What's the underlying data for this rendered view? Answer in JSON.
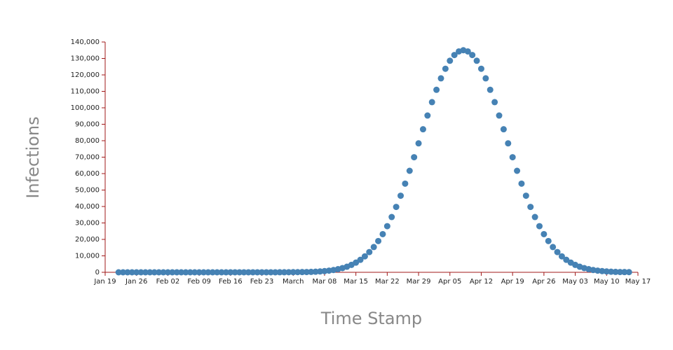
{
  "chart_data": {
    "type": "scatter",
    "x_label": "Time Stamp",
    "y_label": "Infections",
    "x": [
      "Jan 22",
      "Jan 23",
      "Jan 24",
      "Jan 25",
      "Jan 26",
      "Jan 27",
      "Jan 28",
      "Jan 29",
      "Jan 30",
      "Jan 31",
      "Feb 01",
      "Feb 02",
      "Feb 03",
      "Feb 04",
      "Feb 05",
      "Feb 06",
      "Feb 07",
      "Feb 08",
      "Feb 09",
      "Feb 10",
      "Feb 11",
      "Feb 12",
      "Feb 13",
      "Feb 14",
      "Feb 15",
      "Feb 16",
      "Feb 17",
      "Feb 18",
      "Feb 19",
      "Feb 20",
      "Feb 21",
      "Feb 22",
      "Feb 23",
      "Feb 24",
      "Feb 25",
      "Feb 26",
      "Feb 27",
      "Feb 28",
      "Feb 29",
      "Mar 01",
      "Mar 02",
      "Mar 03",
      "Mar 04",
      "Mar 05",
      "Mar 06",
      "Mar 07",
      "Mar 08",
      "Mar 09",
      "Mar 10",
      "Mar 11",
      "Mar 12",
      "Mar 13",
      "Mar 14",
      "Mar 15",
      "Mar 16",
      "Mar 17",
      "Mar 18",
      "Mar 19",
      "Mar 20",
      "Mar 21",
      "Mar 22",
      "Mar 23",
      "Mar 24",
      "Mar 25",
      "Mar 26",
      "Mar 27",
      "Mar 28",
      "Mar 29",
      "Mar 30",
      "Mar 31",
      "Apr 01",
      "Apr 02",
      "Apr 03",
      "Apr 04",
      "Apr 05",
      "Apr 06",
      "Apr 07",
      "Apr 08",
      "Apr 09",
      "Apr 10",
      "Apr 11",
      "Apr 12",
      "Apr 13",
      "Apr 14",
      "Apr 15",
      "Apr 16",
      "Apr 17",
      "Apr 18",
      "Apr 19",
      "Apr 20",
      "Apr 21",
      "Apr 22",
      "Apr 23",
      "Apr 24",
      "Apr 25",
      "Apr 26",
      "Apr 27",
      "Apr 28",
      "Apr 29",
      "Apr 30",
      "May 01",
      "May 02",
      "May 03",
      "May 04",
      "May 05",
      "May 06",
      "May 07",
      "May 08",
      "May 09",
      "May 10",
      "May 11",
      "May 12",
      "May 13",
      "May 14",
      "May 15"
    ],
    "series": [
      {
        "color": "#4682b4",
        "values": [
          0,
          0,
          0,
          0,
          0,
          0,
          0,
          0,
          0,
          0,
          0,
          0,
          0,
          0,
          0,
          0,
          0,
          0,
          1,
          1,
          1,
          1,
          2,
          2,
          2,
          3,
          3,
          4,
          5,
          6,
          7,
          8,
          10,
          14,
          19,
          26,
          35,
          47,
          62,
          82,
          107,
          140,
          180,
          250,
          360,
          520,
          730,
          1020,
          1400,
          1900,
          2570,
          3400,
          4500,
          5900,
          7600,
          9700,
          12300,
          15350,
          19000,
          23200,
          28050,
          33600,
          39750,
          46550,
          53900,
          61700,
          69950,
          78400,
          86950,
          95300,
          103450,
          110950,
          117900,
          123750,
          128600,
          132100,
          134270,
          135000,
          134270,
          132100,
          128600,
          123750,
          117900,
          110950,
          103450,
          95300,
          86950,
          78400,
          69950,
          61700,
          53900,
          46550,
          39750,
          33600,
          28050,
          23200,
          19000,
          15350,
          12300,
          9700,
          7600,
          5900,
          4500,
          3400,
          2570,
          1900,
          1400,
          1020,
          730,
          520,
          360,
          250,
          180,
          140,
          107
        ]
      }
    ],
    "xlim": [
      "Jan 19",
      "May 17"
    ],
    "xticks": [
      "Jan 19",
      "Jan 26",
      "Feb 02",
      "Feb 09",
      "Feb 16",
      "Feb 23",
      {
        "value": "Mar 01",
        "label": "March"
      },
      "Mar 08",
      "Mar 15",
      "Mar 22",
      "Mar 29",
      "Apr 05",
      "Apr 12",
      "Apr 19",
      "Apr 26",
      "May 03",
      "May 10",
      "May 17"
    ],
    "ylim": [
      0,
      140000
    ],
    "yticks": [
      0,
      {
        "value": 10000,
        "label": "10,000"
      },
      {
        "value": 20000,
        "label": "20,000"
      },
      {
        "value": 30000,
        "label": "30,000"
      },
      {
        "value": 40000,
        "label": "40,000"
      },
      {
        "value": 50000,
        "label": "50,000"
      },
      {
        "value": 60000,
        "label": "60,000"
      },
      {
        "value": 70000,
        "label": "70,000"
      },
      {
        "value": 80000,
        "label": "80,000"
      },
      {
        "value": 90000,
        "label": "90,000"
      },
      {
        "value": 100000,
        "label": "100,000"
      },
      {
        "value": 110000,
        "label": "110,000"
      },
      {
        "value": 120000,
        "label": "120,000"
      },
      {
        "value": 130000,
        "label": "130,000"
      },
      {
        "value": 140000,
        "label": "140,000"
      }
    ],
    "grid": false
  }
}
